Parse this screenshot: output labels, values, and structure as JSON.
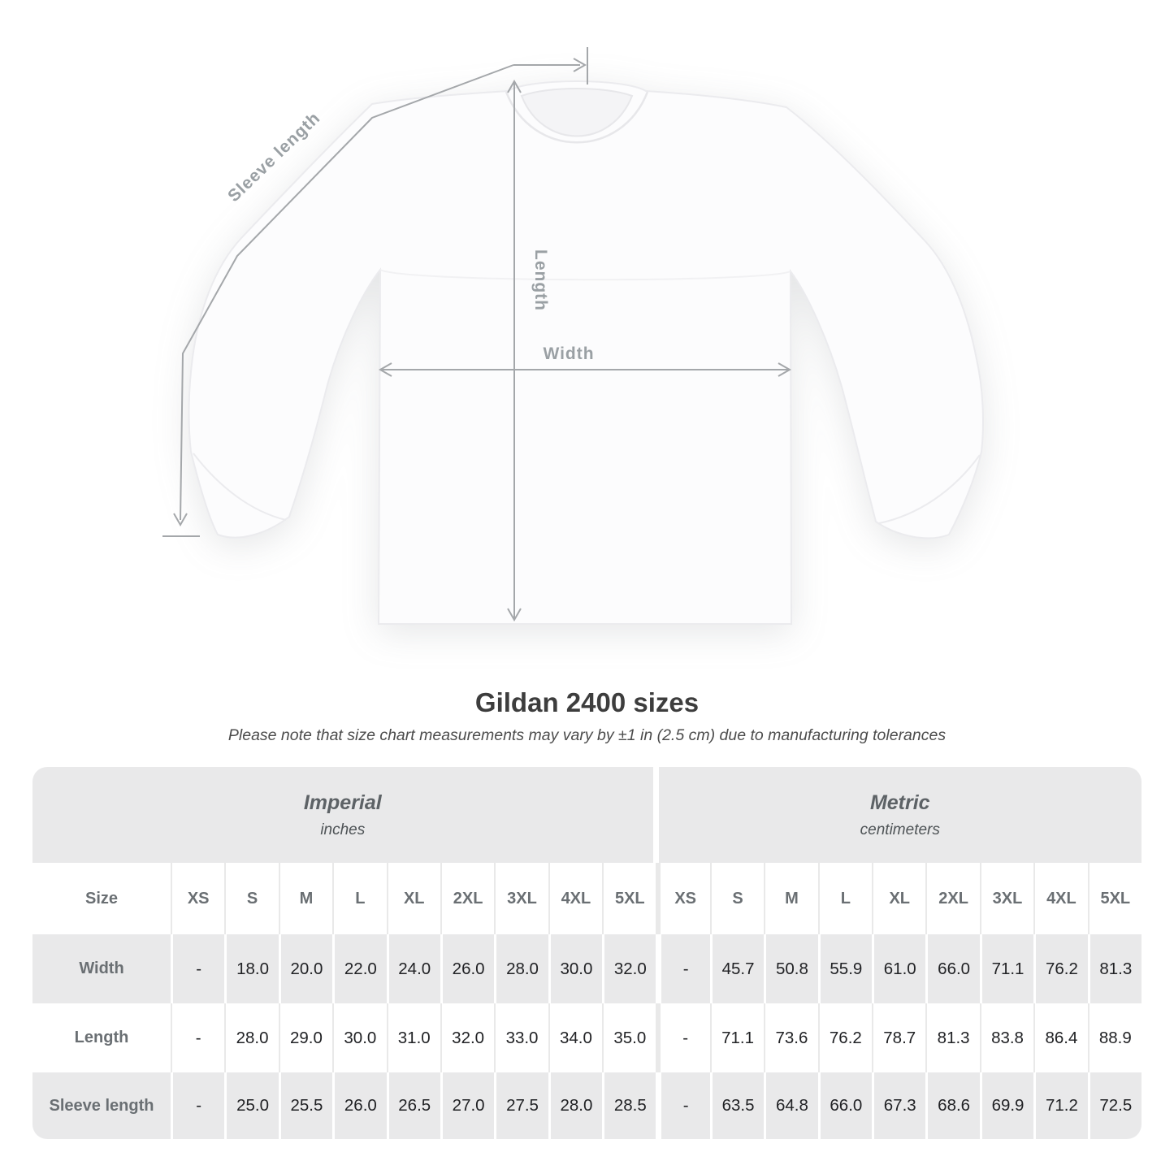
{
  "diagram": {
    "sleeve_length_label": "Sleeve length",
    "length_label": "Length",
    "width_label": "Width"
  },
  "title": "Gildan 2400 sizes",
  "subtitle": "Please note that size chart measurements may vary by ±1 in (2.5 cm) due to manufacturing tolerances",
  "table": {
    "sections": [
      {
        "label": "Imperial",
        "sublabel": "inches"
      },
      {
        "label": "Metric",
        "sublabel": "centimeters"
      }
    ],
    "size_header": "Size",
    "sizes": [
      "XS",
      "S",
      "M",
      "L",
      "XL",
      "2XL",
      "3XL",
      "4XL",
      "5XL"
    ],
    "rows": [
      {
        "label": "Width",
        "imperial": [
          "-",
          "18.0",
          "20.0",
          "22.0",
          "24.0",
          "26.0",
          "28.0",
          "30.0",
          "32.0"
        ],
        "metric": [
          "-",
          "45.7",
          "50.8",
          "55.9",
          "61.0",
          "66.0",
          "71.1",
          "76.2",
          "81.3"
        ]
      },
      {
        "label": "Length",
        "imperial": [
          "-",
          "28.0",
          "29.0",
          "30.0",
          "31.0",
          "32.0",
          "33.0",
          "34.0",
          "35.0"
        ],
        "metric": [
          "-",
          "71.1",
          "73.6",
          "76.2",
          "78.7",
          "81.3",
          "83.8",
          "86.4",
          "88.9"
        ]
      },
      {
        "label": "Sleeve length",
        "imperial": [
          "-",
          "25.0",
          "25.5",
          "26.0",
          "26.5",
          "27.0",
          "27.5",
          "28.0",
          "28.5"
        ],
        "metric": [
          "-",
          "63.5",
          "64.8",
          "66.0",
          "67.3",
          "68.6",
          "69.9",
          "71.2",
          "72.5"
        ]
      }
    ]
  },
  "colors": {
    "row_gray": "#e9e9ea",
    "label_text": "#6a6f73",
    "value_text": "#212225",
    "dimension_line": "#a4a7aa",
    "title_text": "#3d3d3d"
  }
}
